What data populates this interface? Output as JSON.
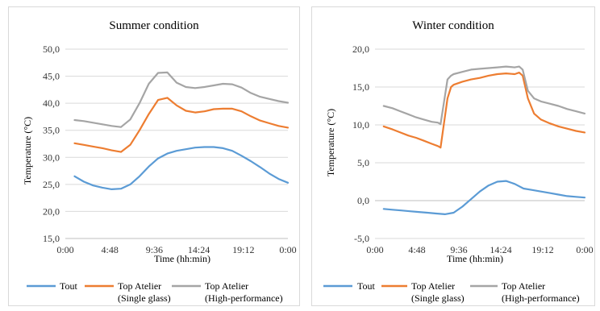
{
  "chart_data": [
    {
      "type": "line",
      "title": "Summer condition",
      "xlabel": "Time (hh:min)",
      "ylabel": "Temperature (°C)",
      "x_ticks": [
        "0:00",
        "4:48",
        "9:36",
        "14:24",
        "19:12",
        "0:00"
      ],
      "y_ticks": [
        "15,0",
        "20,0",
        "25,0",
        "30,0",
        "35,0",
        "40,0",
        "45,0",
        "50,0"
      ],
      "ylim": [
        15,
        50
      ],
      "x_range_hours": [
        0,
        24
      ],
      "grid": true,
      "legend_position": "bottom",
      "series": [
        {
          "name": "Tout",
          "color": "#5b9bd5",
          "x": [
            1,
            2,
            3,
            4,
            5,
            6,
            7,
            8,
            9,
            10,
            11,
            12,
            13,
            14,
            15,
            16,
            17,
            18,
            19,
            20,
            21,
            22,
            23,
            24
          ],
          "y": [
            26.5,
            25.5,
            24.8,
            24.4,
            24.1,
            24.2,
            25.0,
            26.5,
            28.3,
            29.8,
            30.7,
            31.2,
            31.5,
            31.8,
            31.9,
            31.9,
            31.7,
            31.2,
            30.3,
            29.3,
            28.2,
            27.0,
            26.0,
            25.3
          ]
        },
        {
          "name": "Top Atelier (Single glass)",
          "color": "#ed7d31",
          "x": [
            1,
            2,
            3,
            4,
            5,
            6,
            7,
            8,
            9,
            10,
            11,
            12,
            13,
            14,
            15,
            16,
            17,
            18,
            19,
            20,
            21,
            22,
            23,
            24
          ],
          "y": [
            32.6,
            32.3,
            32.0,
            31.7,
            31.3,
            31.0,
            32.3,
            35.0,
            38.0,
            40.6,
            41.0,
            39.6,
            38.6,
            38.3,
            38.5,
            38.9,
            39.0,
            39.0,
            38.5,
            37.6,
            36.8,
            36.3,
            35.8,
            35.5
          ]
        },
        {
          "name": "Top Atelier (High-performance)",
          "color": "#a5a5a5",
          "x": [
            1,
            2,
            3,
            4,
            5,
            6,
            7,
            8,
            9,
            10,
            11,
            12,
            13,
            14,
            15,
            16,
            17,
            18,
            19,
            20,
            21,
            22,
            23,
            24
          ],
          "y": [
            36.9,
            36.7,
            36.4,
            36.1,
            35.8,
            35.6,
            37.0,
            40.0,
            43.6,
            45.6,
            45.7,
            43.8,
            43.0,
            42.8,
            43.0,
            43.3,
            43.6,
            43.5,
            42.9,
            41.9,
            41.2,
            40.8,
            40.4,
            40.1
          ]
        }
      ]
    },
    {
      "type": "line",
      "title": "Winter condition",
      "xlabel": "Time (hh:min)",
      "ylabel": "Temperature (°C)",
      "x_ticks": [
        "0:00",
        "4:48",
        "9:36",
        "14:24",
        "19:12",
        "0:00"
      ],
      "y_ticks": [
        "-5,0",
        "0,0",
        "5,0",
        "10,0",
        "15,0",
        "20,0"
      ],
      "ylim": [
        -5,
        20
      ],
      "x_range_hours": [
        0,
        24
      ],
      "grid": true,
      "legend_position": "bottom",
      "series": [
        {
          "name": "Tout",
          "color": "#5b9bd5",
          "x": [
            1,
            2,
            3,
            4,
            5,
            6,
            7,
            8,
            9,
            10,
            11,
            12,
            13,
            14,
            15,
            16,
            17,
            18,
            19,
            20,
            21,
            22,
            23,
            24
          ],
          "y": [
            -1.1,
            -1.2,
            -1.3,
            -1.4,
            -1.5,
            -1.6,
            -1.7,
            -1.8,
            -1.6,
            -0.8,
            0.2,
            1.2,
            2.0,
            2.5,
            2.6,
            2.2,
            1.6,
            1.4,
            1.2,
            1.0,
            0.8,
            0.6,
            0.5,
            0.4
          ]
        },
        {
          "name": "Top Atelier (Single glass)",
          "color": "#ed7d31",
          "x": [
            1,
            2,
            2.9,
            3.8,
            4.7,
            5.6,
            6.5,
            7.2,
            7.5,
            8.3,
            8.7,
            9.0,
            10.0,
            11.0,
            12.0,
            13.0,
            14.0,
            15.0,
            16.0,
            16.5,
            16.9,
            17.5,
            18.2,
            19.0,
            20.0,
            21.0,
            22.0,
            23.0,
            24.0
          ],
          "y": [
            9.8,
            9.4,
            9.0,
            8.6,
            8.3,
            7.9,
            7.5,
            7.2,
            7.0,
            13.5,
            15.0,
            15.3,
            15.7,
            16.0,
            16.2,
            16.5,
            16.7,
            16.8,
            16.7,
            16.9,
            16.5,
            13.5,
            11.5,
            10.7,
            10.2,
            9.8,
            9.5,
            9.2,
            9.0
          ]
        },
        {
          "name": "Top Atelier (High-performance)",
          "color": "#a5a5a5",
          "x": [
            1,
            2,
            2.9,
            3.8,
            4.7,
            5.6,
            6.5,
            7.2,
            7.5,
            8.3,
            8.7,
            9.0,
            10.0,
            11.0,
            12.0,
            13.0,
            14.0,
            15.0,
            16.0,
            16.5,
            16.9,
            17.5,
            18.2,
            19.0,
            20.0,
            21.0,
            22.0,
            23.0,
            24.0
          ],
          "y": [
            12.5,
            12.2,
            11.8,
            11.4,
            11.0,
            10.7,
            10.4,
            10.3,
            10.1,
            16.0,
            16.5,
            16.7,
            17.0,
            17.3,
            17.4,
            17.5,
            17.6,
            17.7,
            17.6,
            17.7,
            17.3,
            14.5,
            13.5,
            13.1,
            12.8,
            12.5,
            12.1,
            11.8,
            11.5
          ]
        }
      ]
    }
  ]
}
